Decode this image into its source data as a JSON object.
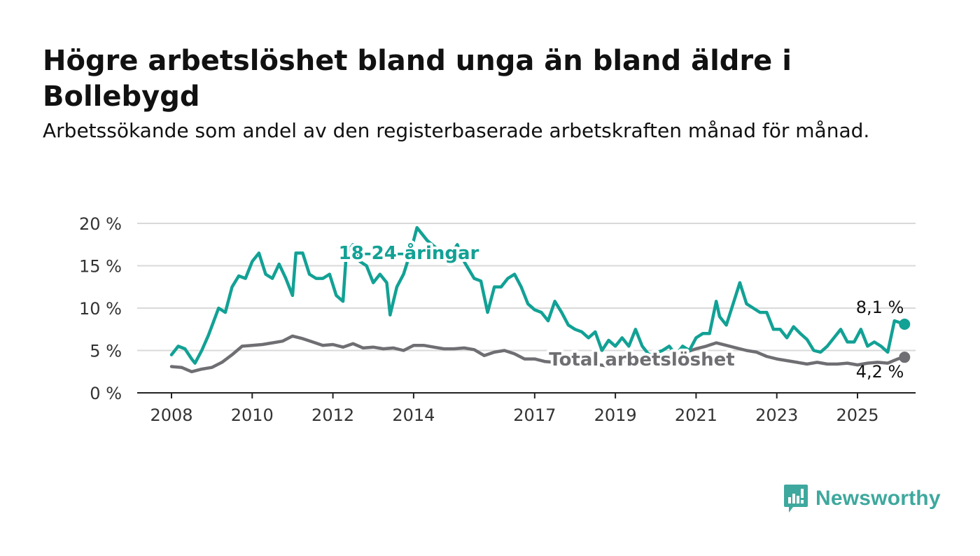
{
  "header": {
    "title": "Högre arbetslöshet bland unga än bland äldre i Bollebygd",
    "subtitle": "Arbetssökande som andel av den registerbaserade arbetskraften månad för månad."
  },
  "brand": {
    "name": "Newsworthy",
    "icon": "newsworthy-logo-icon",
    "color": "#3ea89e"
  },
  "chart_data": {
    "type": "line",
    "title": "Högre arbetslöshet bland unga än bland äldre i Bollebygd",
    "subtitle": "Arbetssökande som andel av den registerbaserade arbetskraften månad för månad.",
    "xlabel": "",
    "ylabel": "",
    "x_ticks": [
      "2008",
      "2010",
      "2012",
      "2014",
      "2017",
      "2019",
      "2021",
      "2023",
      "2025"
    ],
    "y_ticks": [
      "0 %",
      "5 %",
      "10 %",
      "15 %",
      "20 %"
    ],
    "ylim": [
      0,
      20
    ],
    "xlim": [
      "2007-09",
      "2026-05"
    ],
    "grid": true,
    "series": [
      {
        "name": "18-24-åringar",
        "color": "#12a195",
        "end_label": "8,1 %",
        "points": [
          [
            "2008-01",
            4.5
          ],
          [
            "2008-03",
            5.5
          ],
          [
            "2008-05",
            5.2
          ],
          [
            "2008-07",
            4.0
          ],
          [
            "2008-08",
            3.5
          ],
          [
            "2008-10",
            5.0
          ],
          [
            "2008-12",
            6.8
          ],
          [
            "2009-03",
            10.0
          ],
          [
            "2009-05",
            9.5
          ],
          [
            "2009-07",
            12.5
          ],
          [
            "2009-09",
            13.8
          ],
          [
            "2009-11",
            13.5
          ],
          [
            "2010-01",
            15.5
          ],
          [
            "2010-03",
            16.5
          ],
          [
            "2010-05",
            14.0
          ],
          [
            "2010-07",
            13.5
          ],
          [
            "2010-09",
            15.2
          ],
          [
            "2010-11",
            13.5
          ],
          [
            "2011-01",
            11.5
          ],
          [
            "2011-02",
            16.5
          ],
          [
            "2011-04",
            16.5
          ],
          [
            "2011-06",
            14.0
          ],
          [
            "2011-08",
            13.5
          ],
          [
            "2011-10",
            13.5
          ],
          [
            "2011-12",
            14.0
          ],
          [
            "2012-02",
            11.5
          ],
          [
            "2012-04",
            10.8
          ],
          [
            "2012-05",
            16.5
          ],
          [
            "2012-07",
            17.5
          ],
          [
            "2012-09",
            15.5
          ],
          [
            "2012-11",
            15.0
          ],
          [
            "2013-01",
            13.0
          ],
          [
            "2013-03",
            14.0
          ],
          [
            "2013-05",
            13.0
          ],
          [
            "2013-06",
            9.2
          ],
          [
            "2013-08",
            12.5
          ],
          [
            "2013-10",
            14.0
          ],
          [
            "2013-12",
            16.5
          ],
          [
            "2014-02",
            19.5
          ],
          [
            "2014-05",
            18.0
          ],
          [
            "2014-08",
            17.0
          ],
          [
            "2014-11",
            15.5
          ],
          [
            "2015-02",
            17.5
          ],
          [
            "2015-04",
            15.5
          ],
          [
            "2015-07",
            13.5
          ],
          [
            "2015-09",
            13.2
          ],
          [
            "2015-11",
            9.5
          ],
          [
            "2016-01",
            12.5
          ],
          [
            "2016-03",
            12.5
          ],
          [
            "2016-05",
            13.5
          ],
          [
            "2016-07",
            14.0
          ],
          [
            "2016-09",
            12.5
          ],
          [
            "2016-11",
            10.5
          ],
          [
            "2017-01",
            9.8
          ],
          [
            "2017-03",
            9.5
          ],
          [
            "2017-05",
            8.5
          ],
          [
            "2017-07",
            10.8
          ],
          [
            "2017-09",
            9.5
          ],
          [
            "2017-11",
            8.0
          ],
          [
            "2018-01",
            7.5
          ],
          [
            "2018-03",
            7.2
          ],
          [
            "2018-05",
            6.5
          ],
          [
            "2018-07",
            7.2
          ],
          [
            "2018-09",
            5.0
          ],
          [
            "2018-11",
            6.2
          ],
          [
            "2019-01",
            5.5
          ],
          [
            "2019-03",
            6.5
          ],
          [
            "2019-05",
            5.5
          ],
          [
            "2019-07",
            7.5
          ],
          [
            "2019-09",
            5.5
          ],
          [
            "2019-11",
            4.5
          ],
          [
            "2020-01",
            4.7
          ],
          [
            "2020-03",
            5.0
          ],
          [
            "2020-05",
            5.5
          ],
          [
            "2020-07",
            4.5
          ],
          [
            "2020-09",
            5.5
          ],
          [
            "2020-11",
            5.0
          ],
          [
            "2021-01",
            6.5
          ],
          [
            "2021-03",
            7.0
          ],
          [
            "2021-05",
            7.0
          ],
          [
            "2021-07",
            10.8
          ],
          [
            "2021-08",
            9.0
          ],
          [
            "2021-10",
            8.0
          ],
          [
            "2021-12",
            10.5
          ],
          [
            "2022-02",
            13.0
          ],
          [
            "2022-04",
            10.5
          ],
          [
            "2022-06",
            10.0
          ],
          [
            "2022-08",
            9.5
          ],
          [
            "2022-10",
            9.5
          ],
          [
            "2022-12",
            7.5
          ],
          [
            "2023-02",
            7.5
          ],
          [
            "2023-04",
            6.5
          ],
          [
            "2023-06",
            7.8
          ],
          [
            "2023-08",
            7.0
          ],
          [
            "2023-10",
            6.3
          ],
          [
            "2023-12",
            5.0
          ],
          [
            "2024-02",
            4.8
          ],
          [
            "2024-04",
            5.5
          ],
          [
            "2024-06",
            6.5
          ],
          [
            "2024-08",
            7.5
          ],
          [
            "2024-10",
            6.0
          ],
          [
            "2024-12",
            6.0
          ],
          [
            "2025-02",
            7.5
          ],
          [
            "2025-04",
            5.5
          ],
          [
            "2025-06",
            6.0
          ],
          [
            "2025-08",
            5.5
          ],
          [
            "2025-10",
            4.8
          ],
          [
            "2025-12",
            8.5
          ],
          [
            "2026-03",
            8.1
          ]
        ]
      },
      {
        "name": "Total arbetslöshet",
        "color": "#6f6e72",
        "end_label": "4,2 %",
        "points": [
          [
            "2008-01",
            3.1
          ],
          [
            "2008-04",
            3.0
          ],
          [
            "2008-07",
            2.5
          ],
          [
            "2008-10",
            2.8
          ],
          [
            "2009-01",
            3.0
          ],
          [
            "2009-04",
            3.6
          ],
          [
            "2009-07",
            4.5
          ],
          [
            "2009-10",
            5.5
          ],
          [
            "2010-01",
            5.6
          ],
          [
            "2010-04",
            5.7
          ],
          [
            "2010-07",
            5.9
          ],
          [
            "2010-10",
            6.1
          ],
          [
            "2011-01",
            6.7
          ],
          [
            "2011-04",
            6.4
          ],
          [
            "2011-07",
            6.0
          ],
          [
            "2011-10",
            5.6
          ],
          [
            "2012-01",
            5.7
          ],
          [
            "2012-04",
            5.4
          ],
          [
            "2012-07",
            5.8
          ],
          [
            "2012-10",
            5.3
          ],
          [
            "2013-01",
            5.4
          ],
          [
            "2013-04",
            5.2
          ],
          [
            "2013-07",
            5.3
          ],
          [
            "2013-10",
            5.0
          ],
          [
            "2014-01",
            5.6
          ],
          [
            "2014-04",
            5.6
          ],
          [
            "2014-07",
            5.4
          ],
          [
            "2014-10",
            5.2
          ],
          [
            "2015-01",
            5.2
          ],
          [
            "2015-04",
            5.3
          ],
          [
            "2015-07",
            5.1
          ],
          [
            "2015-10",
            4.4
          ],
          [
            "2016-01",
            4.8
          ],
          [
            "2016-04",
            5.0
          ],
          [
            "2016-07",
            4.6
          ],
          [
            "2016-10",
            4.0
          ],
          [
            "2017-01",
            4.0
          ],
          [
            "2017-04",
            3.7
          ],
          [
            "2017-07",
            3.6
          ],
          [
            "2017-10",
            3.5
          ],
          [
            "2018-01",
            3.4
          ],
          [
            "2018-04",
            3.2
          ],
          [
            "2018-07",
            3.4
          ],
          [
            "2018-10",
            3.2
          ],
          [
            "2019-01",
            3.6
          ],
          [
            "2019-04",
            3.8
          ],
          [
            "2019-07",
            3.9
          ],
          [
            "2019-10",
            4.1
          ],
          [
            "2020-01",
            4.4
          ],
          [
            "2020-04",
            4.3
          ],
          [
            "2020-07",
            4.6
          ],
          [
            "2020-10",
            4.8
          ],
          [
            "2021-01",
            5.2
          ],
          [
            "2021-04",
            5.5
          ],
          [
            "2021-07",
            5.9
          ],
          [
            "2021-10",
            5.6
          ],
          [
            "2022-01",
            5.3
          ],
          [
            "2022-04",
            5.0
          ],
          [
            "2022-07",
            4.8
          ],
          [
            "2022-10",
            4.3
          ],
          [
            "2023-01",
            4.0
          ],
          [
            "2023-04",
            3.8
          ],
          [
            "2023-07",
            3.6
          ],
          [
            "2023-10",
            3.4
          ],
          [
            "2024-01",
            3.6
          ],
          [
            "2024-04",
            3.4
          ],
          [
            "2024-07",
            3.4
          ],
          [
            "2024-10",
            3.5
          ],
          [
            "2025-01",
            3.3
          ],
          [
            "2025-04",
            3.5
          ],
          [
            "2025-07",
            3.6
          ],
          [
            "2025-10",
            3.5
          ],
          [
            "2026-01",
            4.0
          ],
          [
            "2026-03",
            4.2
          ]
        ]
      }
    ]
  }
}
